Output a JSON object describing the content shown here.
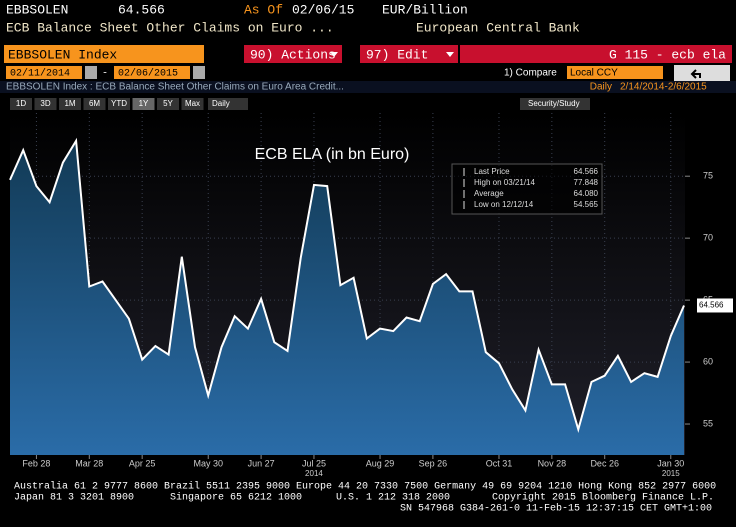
{
  "terminal": {
    "ticker": "EBBSOLEN",
    "price": "64.566",
    "as_of_label": "As Of",
    "as_of": "02/06/15",
    "units": "EUR/Billion",
    "description": "ECB Balance Sheet Other Claims on Euro ...",
    "source": "European Central Bank",
    "security": "EBBSOLEN Index",
    "actions": "90) Actions",
    "edit": "97) Edit",
    "function": "G 115 - ecb ela",
    "start_date": "02/11/2014",
    "end_date": "02/06/2015",
    "compare": "1) Compare",
    "currency": "Local CCY",
    "subtitle": "EBBSOLEN Index : ECB Balance Sheet Other Claims on Euro Area Credit...",
    "range_label": "Daily",
    "range": "2/14/2014-2/6/2015",
    "periods": [
      "1D",
      "3D",
      "1M",
      "6M",
      "YTD",
      "1Y",
      "5Y",
      "Max"
    ],
    "frequency": "Daily",
    "study": "Security/Study",
    "footer": [
      "Australia 61 2 9777 8600 Brazil 5511 2395 9000 Europe 44 20 7330 7500 Germany 49 69 9204 1210 Hong Kong 852 2977 6000",
      "Japan 81 3 3201 8900",
      "Singapore 65 6212 1000",
      "U.S. 1 212 318 2000",
      "Copyright 2015 Bloomberg Finance L.P.",
      "SN 547968 G384-261-0 11-Feb-15 12:37:15 CET  GMT+1:00"
    ]
  },
  "chart_data": {
    "type": "line",
    "title": "ECB ELA (in bn Euro)",
    "color": "#ffffff",
    "values": [
      74.7,
      77.1,
      74.2,
      72.9,
      76.1,
      77.848,
      66.1,
      66.5,
      65.0,
      63.5,
      60.2,
      61.3,
      60.6,
      68.5,
      61.2,
      57.3,
      61.2,
      63.7,
      62.7,
      65.1,
      61.6,
      60.9,
      68.4,
      74.3,
      74.2,
      66.2,
      66.8,
      61.9,
      62.7,
      62.5,
      63.6,
      63.3,
      66.3,
      67.1,
      65.7,
      65.7,
      60.8,
      59.9,
      57.8,
      56.1,
      61.0,
      58.2,
      58.2,
      54.565,
      58.4,
      58.9,
      60.5,
      58.4,
      59.1,
      58.8,
      62.1,
      64.566
    ],
    "xlim": [
      0,
      51
    ],
    "xticks": [
      {
        "value": 2,
        "label": "Feb 28"
      },
      {
        "value": 6,
        "label": "Mar 28"
      },
      {
        "value": 10,
        "label": "Apr 25"
      },
      {
        "value": 15,
        "label": "May 30"
      },
      {
        "value": 19,
        "label": "Jun 27"
      },
      {
        "value": 23,
        "label": "Jul 25"
      },
      {
        "value": 28,
        "label": "Aug 29"
      },
      {
        "value": 32,
        "label": "Sep 26"
      },
      {
        "value": 37,
        "label": "Oct 31"
      },
      {
        "value": 41,
        "label": "Nov 28"
      },
      {
        "value": 45,
        "label": "Dec 26"
      },
      {
        "value": 50,
        "label": "Jan 30"
      }
    ],
    "year_ticks": [
      {
        "value": 23,
        "label": "2014"
      },
      {
        "value": 50,
        "label": "2015"
      }
    ],
    "ylim": [
      52.5,
      80.1
    ],
    "yticks": [
      55,
      60,
      65,
      70,
      75
    ],
    "grid": true,
    "stats": [
      {
        "label": "Last Price",
        "value": "64.566"
      },
      {
        "label": "High on 03/21/14",
        "value": "77.848"
      },
      {
        "label": "Average",
        "value": "64.080"
      },
      {
        "label": "Low on 12/12/14",
        "value": "54.565"
      }
    ]
  }
}
